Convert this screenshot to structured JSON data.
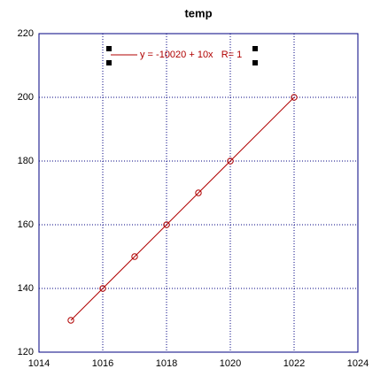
{
  "chart_data": {
    "type": "line",
    "title": "temp",
    "x": [
      1015,
      1016,
      1017,
      1018,
      1019,
      1020,
      1022
    ],
    "series": [
      {
        "name": "y = -10020 + 10x   R= 1",
        "color": "#b00000",
        "values": [
          130,
          140,
          150,
          160,
          170,
          180,
          200
        ]
      }
    ],
    "xlim": [
      1014,
      1024
    ],
    "xticks": [
      1014,
      1016,
      1018,
      1020,
      1022,
      1024
    ],
    "ylim": [
      120,
      220
    ],
    "yticks": [
      120,
      140,
      160,
      180,
      200,
      220
    ],
    "grid": true,
    "grid_color": "#000080",
    "legend": "top"
  }
}
